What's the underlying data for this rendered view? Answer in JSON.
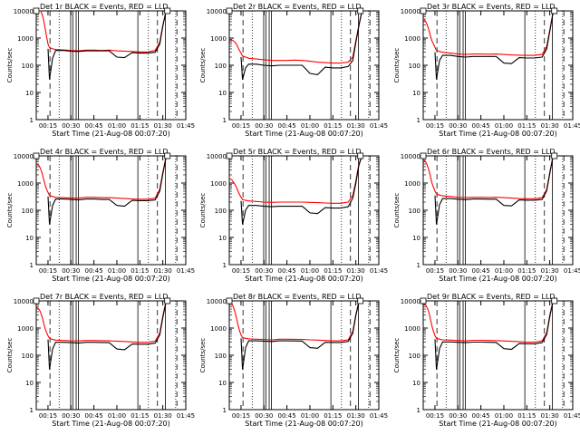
{
  "chart_data": {
    "type": "line",
    "yscale": "log",
    "ylim": [
      1,
      10000
    ],
    "xlim": [
      "00:07:20",
      "01:45"
    ],
    "xticks": [
      "00:15",
      "00:30",
      "00:45",
      "01:00",
      "01:15",
      "01:30",
      "01:45"
    ],
    "yticks": [
      "1",
      "10",
      "100",
      "1000",
      "10000"
    ],
    "ylabel": "Counts/sec",
    "xlabel": "Start Time (21-Aug-08 00:07:20)",
    "series_names": [
      "Events",
      "LLD"
    ],
    "colors": {
      "Events": "#000000",
      "LLD": "#ff0000"
    },
    "time_axis": [
      7.33,
      9,
      10,
      11,
      12,
      13,
      14,
      15,
      16,
      18,
      20,
      25,
      30,
      35,
      40,
      45,
      50,
      55,
      60,
      65,
      70,
      75,
      80,
      85,
      88,
      90,
      92,
      94,
      96,
      105
    ],
    "vertical_lines": {
      "solid": [
        29.8,
        31.2,
        33.4,
        34.8,
        73.7,
        91.7
      ],
      "dashed": [
        16.3,
        86.5,
        99.2
      ],
      "dotted": [
        22.3,
        80.6,
        98.4
      ]
    },
    "panels": [
      {
        "title": "Det 1r BLACK = Events, RED = LLD",
        "series": [
          {
            "name": "LLD",
            "values": [
              10000,
              10000,
              10000,
              8000,
              5000,
              2500,
              1200,
              600,
              450,
              400,
              380,
              370,
              350,
              340,
              360,
              360,
              350,
              360,
              340,
              330,
              320,
              310,
              310,
              350,
              700,
              3000,
              9000,
              10000,
              10000,
              10000
            ]
          },
          {
            "name": "Events",
            "values": [
              null,
              null,
              null,
              null,
              null,
              null,
              null,
              400,
              30,
              180,
              350,
              350,
              330,
              320,
              340,
              340,
              340,
              340,
              200,
              190,
              290,
              280,
              280,
              300,
              600,
              2800,
              9000,
              10000,
              10000,
              10000
            ]
          }
        ]
      },
      {
        "title": "Det 2r BLACK = Events, RED = LLD",
        "series": [
          {
            "name": "LLD",
            "values": [
              900,
              850,
              800,
              700,
              600,
              450,
              350,
              280,
              220,
              200,
              180,
              170,
              160,
              150,
              150,
              150,
              155,
              150,
              140,
              130,
              125,
              120,
              120,
              130,
              200,
              800,
              3000,
              10000,
              10000,
              10000
            ]
          },
          {
            "name": "Events",
            "values": [
              null,
              null,
              null,
              null,
              null,
              null,
              null,
              200,
              30,
              80,
              110,
              110,
              100,
              95,
              100,
              100,
              100,
              100,
              50,
              45,
              85,
              80,
              80,
              90,
              150,
              700,
              2800,
              10000,
              10000,
              10000
            ]
          }
        ]
      },
      {
        "title": "Det 3r BLACK = Events, RED = LLD",
        "series": [
          {
            "name": "LLD",
            "values": [
              5000,
              4000,
              3000,
              2000,
              1200,
              800,
              600,
              450,
              350,
              320,
              300,
              280,
              260,
              250,
              260,
              260,
              255,
              260,
              250,
              240,
              235,
              230,
              230,
              250,
              500,
              2000,
              8000,
              10000,
              10000,
              10000
            ]
          },
          {
            "name": "Events",
            "values": [
              null,
              null,
              null,
              null,
              null,
              null,
              null,
              300,
              30,
              150,
              230,
              230,
              210,
              200,
              210,
              210,
              210,
              210,
              120,
              115,
              190,
              185,
              185,
              200,
              400,
              1800,
              7500,
              10000,
              10000,
              10000
            ]
          }
        ]
      },
      {
        "title": "Det 4r BLACK = Events, RED = LLD",
        "series": [
          {
            "name": "LLD",
            "values": [
              5000,
              4500,
              3500,
              2500,
              1500,
              900,
              600,
              450,
              350,
              320,
              300,
              290,
              280,
              280,
              300,
              300,
              290,
              290,
              280,
              270,
              260,
              255,
              255,
              280,
              600,
              2500,
              8500,
              10000,
              10000,
              10000
            ]
          },
          {
            "name": "Events",
            "values": [
              null,
              null,
              null,
              null,
              null,
              null,
              null,
              320,
              30,
              150,
              260,
              260,
              250,
              240,
              260,
              260,
              250,
              250,
              150,
              140,
              230,
              225,
              225,
              240,
              500,
              2200,
              8000,
              10000,
              10000,
              10000
            ]
          }
        ]
      },
      {
        "title": "Det 5r BLACK = Events, RED = LLD",
        "series": [
          {
            "name": "LLD",
            "values": [
              1500,
              1300,
              1100,
              900,
              700,
              500,
              380,
              300,
              250,
              230,
              220,
              210,
              200,
              195,
              200,
              200,
              200,
              200,
              195,
              190,
              185,
              180,
              180,
              200,
              350,
              1200,
              5000,
              10000,
              10000,
              10000
            ]
          },
          {
            "name": "Events",
            "values": [
              null,
              null,
              null,
              null,
              null,
              null,
              null,
              220,
              30,
              100,
              150,
              150,
              140,
              135,
              140,
              140,
              140,
              140,
              80,
              75,
              125,
              120,
              120,
              135,
              280,
              1000,
              4500,
              10000,
              10000,
              10000
            ]
          }
        ]
      },
      {
        "title": "Det 6r BLACK = Events, RED = LLD",
        "series": [
          {
            "name": "LLD",
            "values": [
              7000,
              6000,
              4500,
              3000,
              1800,
              1000,
              700,
              500,
              400,
              360,
              340,
              320,
              300,
              290,
              300,
              300,
              295,
              300,
              290,
              280,
              270,
              265,
              265,
              290,
              600,
              2500,
              9000,
              10000,
              10000,
              10000
            ]
          },
          {
            "name": "Events",
            "values": [
              null,
              null,
              null,
              null,
              null,
              null,
              null,
              350,
              30,
              160,
              270,
              270,
              255,
              245,
              260,
              260,
              255,
              255,
              150,
              145,
              240,
              235,
              235,
              250,
              520,
              2300,
              8500,
              10000,
              10000,
              10000
            ]
          }
        ]
      },
      {
        "title": "Det 7r BLACK = Events, RED = LLD",
        "series": [
          {
            "name": "LLD",
            "values": [
              6000,
              5000,
              4000,
              2800,
              1700,
              1000,
              700,
              520,
              420,
              380,
              360,
              350,
              340,
              335,
              350,
              350,
              345,
              340,
              330,
              320,
              310,
              300,
              300,
              330,
              650,
              2800,
              9000,
              10000,
              10000,
              10000
            ]
          },
          {
            "name": "Events",
            "values": [
              null,
              null,
              null,
              null,
              null,
              null,
              null,
              380,
              30,
              170,
              300,
              300,
              290,
              280,
              300,
              300,
              295,
              290,
              170,
              160,
              260,
              255,
              255,
              280,
              560,
              2500,
              8500,
              10000,
              10000,
              10000
            ]
          }
        ]
      },
      {
        "title": "Det 8r BLACK = Events, RED = LLD",
        "series": [
          {
            "name": "LLD",
            "values": [
              9000,
              8000,
              6000,
              4000,
              2400,
              1300,
              800,
              560,
              450,
              420,
              400,
              390,
              380,
              370,
              390,
              390,
              385,
              380,
              370,
              360,
              350,
              340,
              340,
              370,
              750,
              3200,
              9500,
              10000,
              10000,
              10000
            ]
          },
          {
            "name": "Events",
            "values": [
              null,
              null,
              null,
              null,
              null,
              null,
              null,
              420,
              30,
              190,
              340,
              340,
              330,
              320,
              340,
              340,
              335,
              330,
              190,
              180,
              300,
              295,
              295,
              320,
              650,
              2900,
              9000,
              10000,
              10000,
              10000
            ]
          }
        ]
      },
      {
        "title": "Det 9r BLACK = Events, RED = LLD",
        "series": [
          {
            "name": "LLD",
            "values": [
              8000,
              7000,
              5500,
              3800,
              2200,
              1200,
              750,
              520,
              420,
              390,
              370,
              360,
              350,
              340,
              355,
              355,
              350,
              345,
              335,
              325,
              315,
              305,
              305,
              335,
              680,
              3000,
              9200,
              10000,
              10000,
              10000
            ]
          },
          {
            "name": "Events",
            "values": [
              null,
              null,
              null,
              null,
              null,
              null,
              null,
              390,
              30,
              175,
              310,
              310,
              300,
              290,
              305,
              305,
              300,
              295,
              175,
              165,
              270,
              265,
              265,
              290,
              590,
              2700,
              8700,
              10000,
              10000,
              10000
            ]
          }
        ]
      }
    ]
  }
}
